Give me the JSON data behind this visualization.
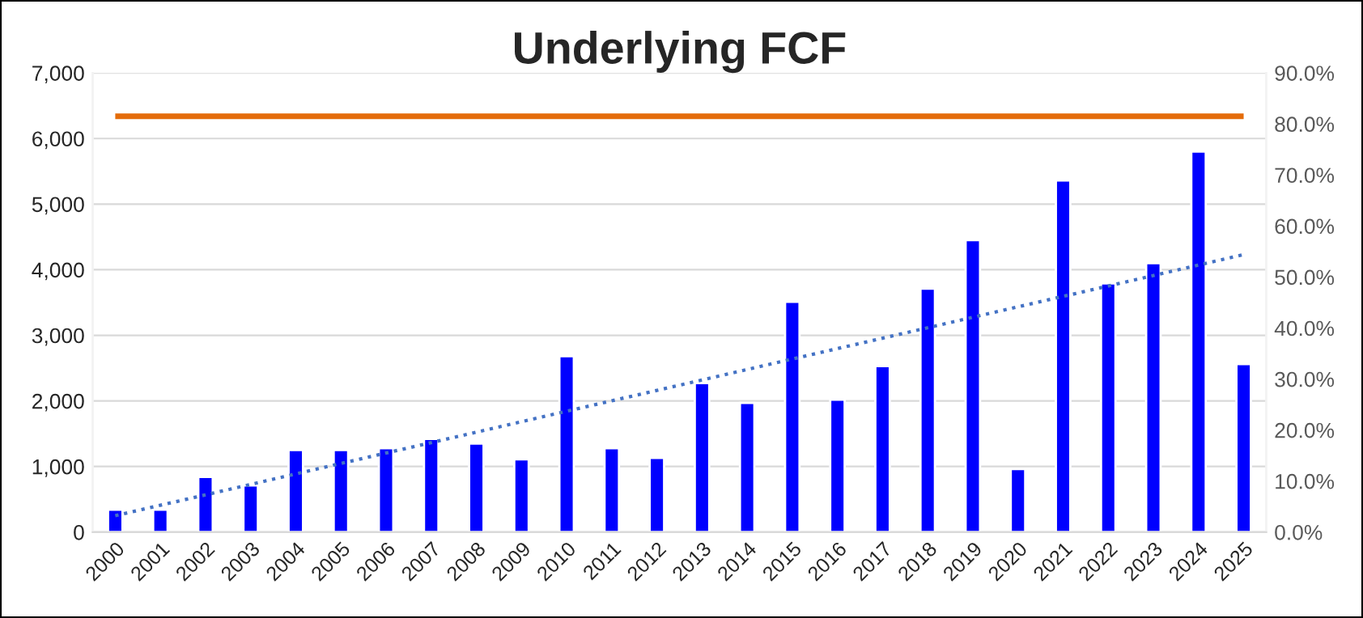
{
  "chart_data": {
    "type": "bar",
    "title": "Underlying FCF",
    "categories": [
      "2000",
      "2001",
      "2002",
      "2003",
      "2004",
      "2005",
      "2006",
      "2007",
      "2008",
      "2009",
      "2010",
      "2011",
      "2012",
      "2013",
      "2014",
      "2015",
      "2016",
      "2017",
      "2018",
      "2019",
      "2020",
      "2021",
      "2022",
      "2023",
      "2024",
      "2025"
    ],
    "series": [
      {
        "color": "#0000ff",
        "values": [
          340,
          340,
          840,
          710,
          1250,
          1250,
          1280,
          1420,
          1350,
          1110,
          2680,
          1280,
          1130,
          2270,
          1970,
          3510,
          2020,
          2530,
          3710,
          4450,
          960,
          5360,
          3790,
          4100,
          5800,
          2560
        ]
      },
      {
        "type": "line",
        "color": "#4472c4",
        "line_style": "dotted",
        "values": [
          250,
          null,
          null,
          null,
          null,
          null,
          null,
          null,
          null,
          null,
          null,
          null,
          null,
          null,
          null,
          null,
          null,
          null,
          null,
          null,
          null,
          null,
          null,
          null,
          null,
          4230
        ]
      }
    ],
    "ylim": [
      0,
      7000
    ],
    "yticks": [
      {
        "value": 0,
        "label": "0"
      },
      {
        "value": 1000,
        "label": "1,000"
      },
      {
        "value": 2000,
        "label": "2,000"
      },
      {
        "value": 3000,
        "label": "3,000"
      },
      {
        "value": 4000,
        "label": "4,000"
      },
      {
        "value": 5000,
        "label": "5,000"
      },
      {
        "value": 6000,
        "label": "6,000"
      },
      {
        "value": 7000,
        "label": "7,000"
      }
    ],
    "y2lim": [
      0,
      90
    ],
    "y2ticks": [
      {
        "value": 0,
        "label": "0.0%"
      },
      {
        "value": 10,
        "label": "10.0%"
      },
      {
        "value": 20,
        "label": "20.0%"
      },
      {
        "value": 30,
        "label": "30.0%"
      },
      {
        "value": 40,
        "label": "40.0%"
      },
      {
        "value": 50,
        "label": "50.0%"
      },
      {
        "value": 60,
        "label": "60.0%"
      },
      {
        "value": 70,
        "label": "70.0%"
      },
      {
        "value": 80,
        "label": "80.0%"
      },
      {
        "value": 90,
        "label": "90.0%"
      }
    ],
    "ref_lines": [
      {
        "axis": "y2",
        "value": 81.5,
        "color": "#e46c0a"
      }
    ],
    "grid": "y",
    "legend": false
  }
}
